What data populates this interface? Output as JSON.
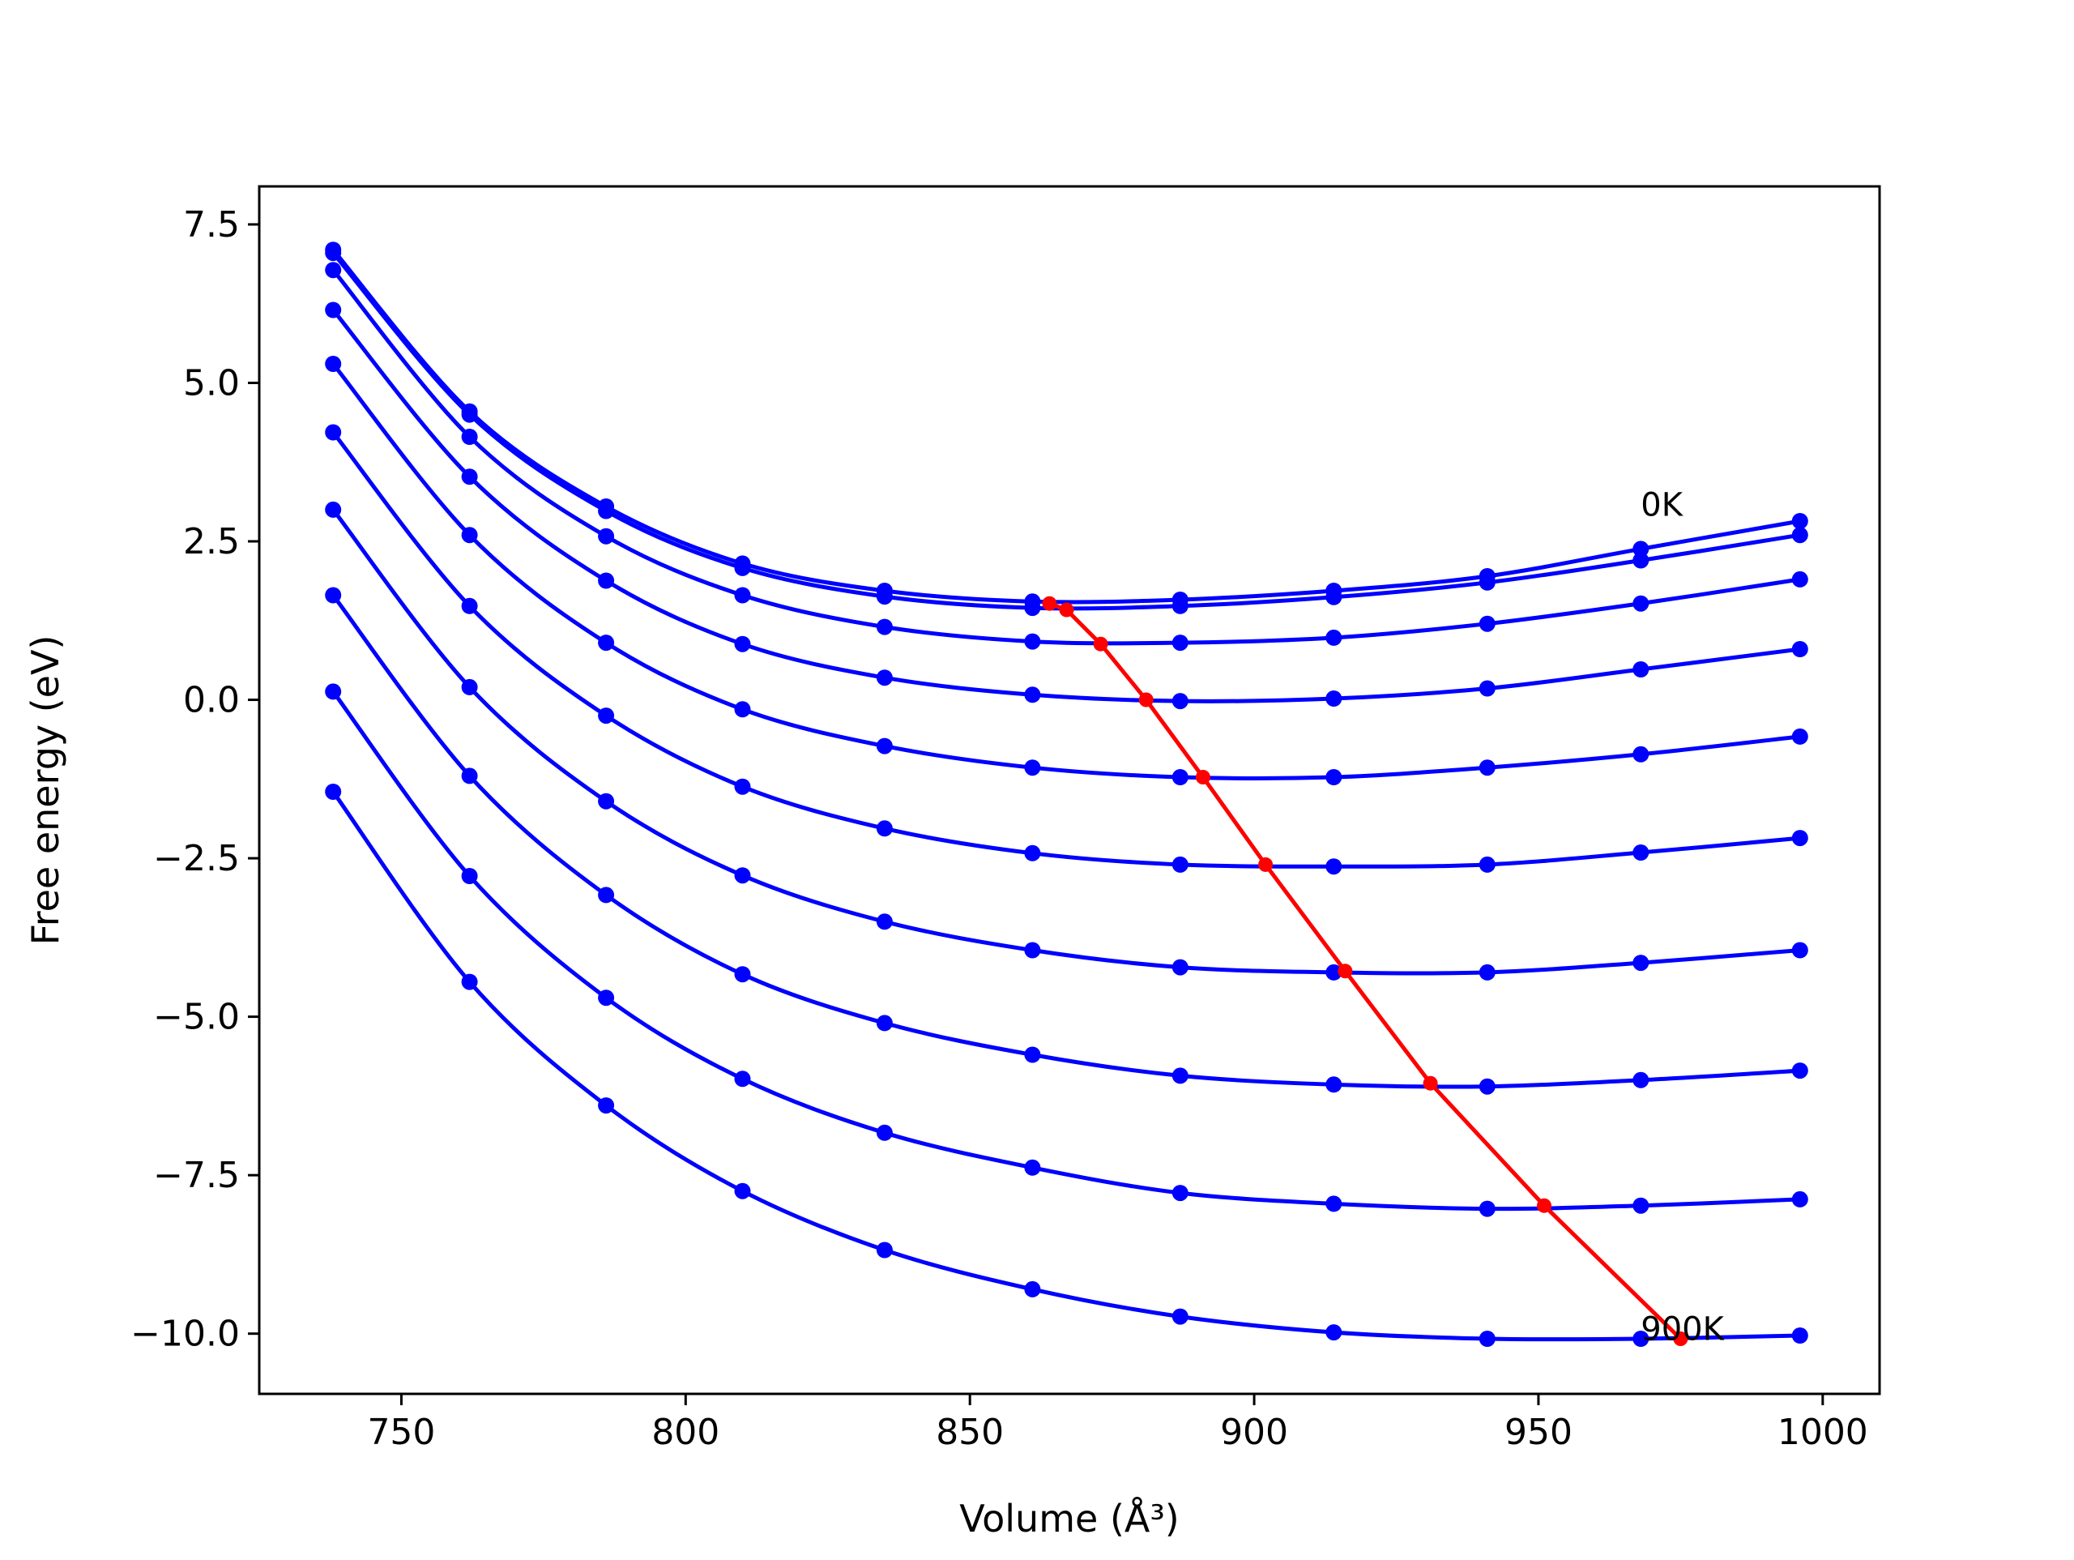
{
  "chart_data": {
    "type": "line",
    "xlabel": "Volume (Å³)",
    "ylabel": "Free energy (eV)",
    "xlim": [
      725,
      1010
    ],
    "ylim": [
      -10.95,
      8.1
    ],
    "xticks": [
      750,
      800,
      850,
      900,
      950,
      1000
    ],
    "yticks": [
      -10.0,
      -7.5,
      -5.0,
      -2.5,
      0.0,
      2.5,
      5.0,
      7.5
    ],
    "ytick_labels": [
      "−10.0",
      "−7.5",
      "−5.0",
      "−2.5",
      "0.0",
      "2.5",
      "5.0",
      "7.5"
    ],
    "grid": false,
    "legend": "none",
    "annotations": [
      {
        "text": "0K",
        "x": 968,
        "y": 2.9
      },
      {
        "text": "900K",
        "x": 968,
        "y": -10.1
      }
    ],
    "x": [
      738,
      762,
      786,
      810,
      835,
      861,
      887,
      914,
      941,
      968,
      996
    ],
    "series": [
      {
        "values": [
          7.1,
          4.55,
          3.05,
          2.15,
          1.72,
          1.55,
          1.58,
          1.72,
          1.95,
          2.38,
          2.82
        ]
      },
      {
        "values": [
          7.05,
          4.5,
          2.98,
          2.08,
          1.63,
          1.45,
          1.48,
          1.62,
          1.85,
          2.2,
          2.6
        ]
      },
      {
        "values": [
          6.78,
          4.15,
          2.58,
          1.65,
          1.15,
          0.92,
          0.9,
          0.98,
          1.2,
          1.52,
          1.9
        ]
      },
      {
        "values": [
          6.15,
          3.52,
          1.88,
          0.88,
          0.35,
          0.08,
          -0.02,
          0.02,
          0.18,
          0.48,
          0.8
        ]
      },
      {
        "values": [
          5.3,
          2.6,
          0.9,
          -0.15,
          -0.73,
          -1.07,
          -1.22,
          -1.22,
          -1.07,
          -0.86,
          -0.58
        ]
      },
      {
        "values": [
          4.22,
          1.48,
          -0.25,
          -1.37,
          -2.03,
          -2.42,
          -2.6,
          -2.63,
          -2.6,
          -2.41,
          -2.18
        ]
      },
      {
        "values": [
          3.0,
          0.2,
          -1.6,
          -2.77,
          -3.5,
          -3.95,
          -4.22,
          -4.3,
          -4.3,
          -4.15,
          -3.95
        ]
      },
      {
        "values": [
          1.65,
          -1.2,
          -3.08,
          -4.33,
          -5.1,
          -5.6,
          -5.93,
          -6.07,
          -6.1,
          -6.0,
          -5.85
        ]
      },
      {
        "values": [
          0.13,
          -2.78,
          -4.7,
          -5.98,
          -6.83,
          -7.38,
          -7.78,
          -7.95,
          -8.03,
          -7.98,
          -7.88
        ]
      },
      {
        "values": [
          -1.45,
          -4.45,
          -6.4,
          -7.75,
          -8.68,
          -9.3,
          -9.73,
          -9.98,
          -10.08,
          -10.08,
          -10.03
        ]
      }
    ],
    "minima_series": {
      "x": [
        864,
        867,
        873,
        881,
        891,
        902,
        916,
        931,
        951,
        975
      ],
      "values": [
        1.52,
        1.42,
        0.88,
        0.0,
        -1.22,
        -2.6,
        -4.28,
        -6.05,
        -7.98,
        -10.08
      ]
    },
    "colors": {
      "curves": "#0000ff",
      "minima": "#ff0000",
      "axes": "#000000"
    }
  }
}
